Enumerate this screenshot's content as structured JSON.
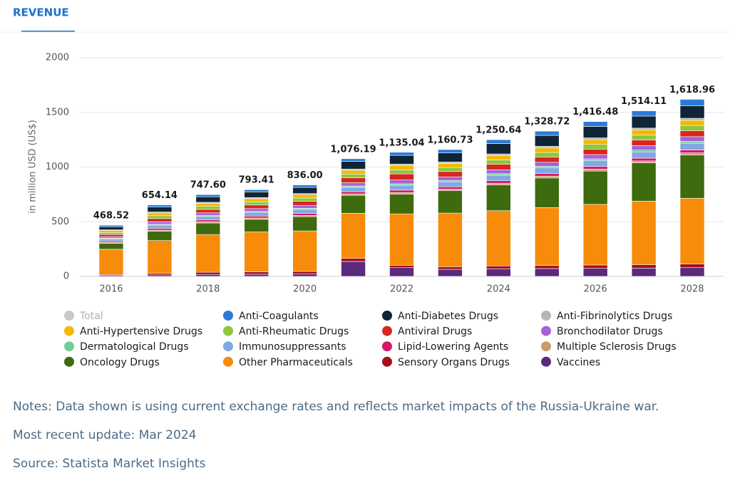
{
  "tab": "REVENUE",
  "chart_data": {
    "type": "stacked_bar",
    "y_label": "in million USD (US$)",
    "categories": [
      "2016",
      null,
      "2018",
      null,
      "2020",
      null,
      "2022",
      null,
      "2024",
      null,
      "2026",
      null,
      "2028"
    ],
    "ylim": [
      0,
      2000
    ],
    "yticks": [
      0,
      500,
      1000,
      1500,
      2000
    ],
    "grid": true,
    "series": [
      {
        "name": "Total",
        "color": "#c8c8c8",
        "hidden": true,
        "values": [
          468.52,
          654.14,
          747.6,
          793.41,
          836.0,
          1076.19,
          1135.04,
          1160.73,
          1250.64,
          1328.72,
          1416.48,
          1514.11,
          1618.96
        ],
        "value_labels": [
          "468.52",
          "654.14",
          "747.60",
          "793.41",
          "836.00",
          "1,076.19",
          "1,135.04",
          "1,160.73",
          "1,250.64",
          "1,328.72",
          "1,416.48",
          "1,514.11",
          "1,618.96"
        ]
      },
      {
        "name": "Anti-Coagulants",
        "color": "#2b7bd6",
        "values": [
          14,
          20,
          20,
          20,
          22,
          24,
          28,
          31,
          35,
          38,
          44,
          48,
          58
        ]
      },
      {
        "name": "Anti-Diabetes Drugs",
        "color": "#0e2437",
        "values": [
          28,
          45,
          50,
          52,
          56,
          70,
          80,
          82,
          95,
          100,
          105,
          110,
          115
        ]
      },
      {
        "name": "Anti-Fibrinolytics Drugs",
        "color": "#b5b5b5",
        "values": [
          6,
          8,
          9,
          10,
          10,
          12,
          14,
          14,
          15,
          16,
          17,
          18,
          19
        ]
      },
      {
        "name": "Anti-Hypertensive Drugs",
        "color": "#f5b800",
        "values": [
          18,
          26,
          28,
          29,
          31,
          34,
          38,
          37,
          40,
          41,
          43,
          45,
          47
        ]
      },
      {
        "name": "Anti-Rheumatic Drugs",
        "color": "#8dc63f",
        "values": [
          18,
          26,
          28,
          29,
          31,
          34,
          38,
          37,
          40,
          41,
          43,
          45,
          47
        ]
      },
      {
        "name": "Antiviral Drugs",
        "color": "#d7261e",
        "values": [
          20,
          30,
          32,
          33,
          36,
          45,
          55,
          48,
          50,
          48,
          50,
          52,
          55
        ]
      },
      {
        "name": "Bronchodilator Drugs",
        "color": "#a660d8",
        "values": [
          15,
          22,
          24,
          25,
          27,
          30,
          35,
          33,
          36,
          37,
          39,
          41,
          43
        ]
      },
      {
        "name": "Dermatological Drugs",
        "color": "#6fcf97",
        "values": [
          6,
          8,
          9,
          9,
          10,
          12,
          13,
          13,
          14,
          15,
          15,
          16,
          17
        ]
      },
      {
        "name": "Immunosuppressants",
        "color": "#80a9e1",
        "values": [
          20,
          30,
          32,
          34,
          36,
          40,
          45,
          45,
          50,
          52,
          55,
          58,
          62
        ]
      },
      {
        "name": "Lipid-Lowering Agents",
        "color": "#d6156c",
        "values": [
          12,
          16,
          17,
          18,
          19,
          20,
          22,
          21,
          23,
          23,
          24,
          25,
          26
        ]
      },
      {
        "name": "Multiple Sclerosis Drugs",
        "color": "#c99b6d",
        "values": [
          8,
          10,
          11,
          12,
          12,
          14,
          15,
          15,
          16,
          17,
          17,
          18,
          19
        ]
      },
      {
        "name": "Oncology Drugs",
        "color": "#3d6b0e",
        "values": [
          55,
          85,
          105,
          115,
          130,
          163,
          180,
          205,
          235,
          270,
          305,
          350,
          397
        ]
      },
      {
        "name": "Other Pharmaceuticals",
        "color": "#f78b0a",
        "values": [
          230,
          300,
          345,
          365,
          370,
          413,
          470,
          490,
          505,
          530,
          555,
          580,
          600
        ]
      },
      {
        "name": "Sensory Organs Drugs",
        "color": "#a50f15",
        "values": [
          8,
          14,
          20,
          22,
          24,
          28,
          22,
          24,
          26,
          28,
          30,
          32,
          34
        ]
      },
      {
        "name": "Vaccines",
        "color": "#5b2a7c",
        "values": [
          10,
          14,
          18,
          20,
          22,
          137,
          80,
          65,
          70,
          72,
          74,
          76,
          80
        ]
      }
    ]
  },
  "notes": [
    "Notes: Data shown is using current exchange rates and reflects market impacts of the Russia-Ukraine war.",
    "Most recent update: Mar 2024",
    "Source: Statista Market Insights"
  ]
}
